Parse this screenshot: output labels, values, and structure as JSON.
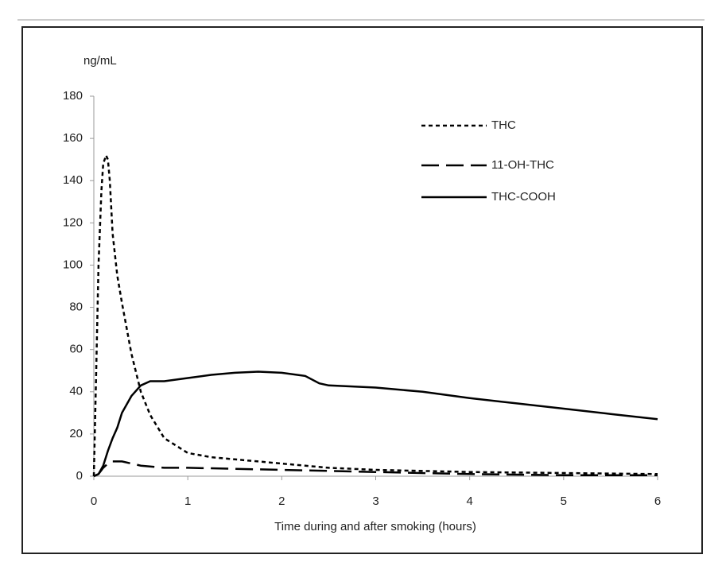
{
  "chart_data": {
    "type": "line",
    "y_label": "ng/mL",
    "x_label": "Time during and after smoking (hours)",
    "xlim": [
      0,
      6
    ],
    "xticks": [
      0,
      1,
      2,
      3,
      4,
      5,
      6
    ],
    "ylim": [
      0,
      180
    ],
    "yticks": [
      0,
      20,
      40,
      60,
      80,
      100,
      120,
      140,
      160,
      180
    ],
    "grid": false,
    "legend": "upper right",
    "series": [
      {
        "name": "THC",
        "color": "#000000",
        "style": "dotted",
        "x": [
          0,
          0.02,
          0.05,
          0.08,
          0.1,
          0.13,
          0.15,
          0.17,
          0.2,
          0.25,
          0.3,
          0.4,
          0.5,
          0.6,
          0.75,
          1,
          1.25,
          1.5,
          1.75,
          2,
          2.5,
          3,
          4,
          5,
          6
        ],
        "values": [
          0,
          40,
          100,
          135,
          148,
          152,
          150,
          140,
          115,
          95,
          82,
          58,
          40,
          29,
          18,
          11,
          9,
          8,
          7,
          6,
          4,
          3,
          2,
          1.5,
          1
        ]
      },
      {
        "name": "11-OH-THC",
        "color": "#000000",
        "style": "dashed",
        "x": [
          0,
          0.05,
          0.1,
          0.15,
          0.2,
          0.3,
          0.4,
          0.5,
          0.75,
          1,
          1.5,
          2,
          3,
          4,
          5,
          6
        ],
        "values": [
          0,
          1,
          4,
          6,
          7,
          7,
          6,
          5,
          4,
          4,
          3.5,
          3,
          2,
          1,
          0.5,
          0.5
        ]
      },
      {
        "name": "THC-COOH",
        "color": "#000000",
        "style": "solid",
        "x": [
          0,
          0.05,
          0.1,
          0.15,
          0.2,
          0.25,
          0.3,
          0.4,
          0.5,
          0.6,
          0.75,
          1,
          1.25,
          1.5,
          1.75,
          2,
          2.25,
          2.4,
          2.5,
          3,
          3.5,
          4,
          4.5,
          5,
          5.5,
          6
        ],
        "values": [
          0,
          1,
          5,
          12,
          18,
          23,
          30,
          38,
          43,
          45,
          45,
          46.5,
          48,
          49,
          49.5,
          49,
          47.5,
          44,
          43,
          42,
          40,
          37,
          34.5,
          32,
          29.5,
          27
        ]
      }
    ]
  }
}
